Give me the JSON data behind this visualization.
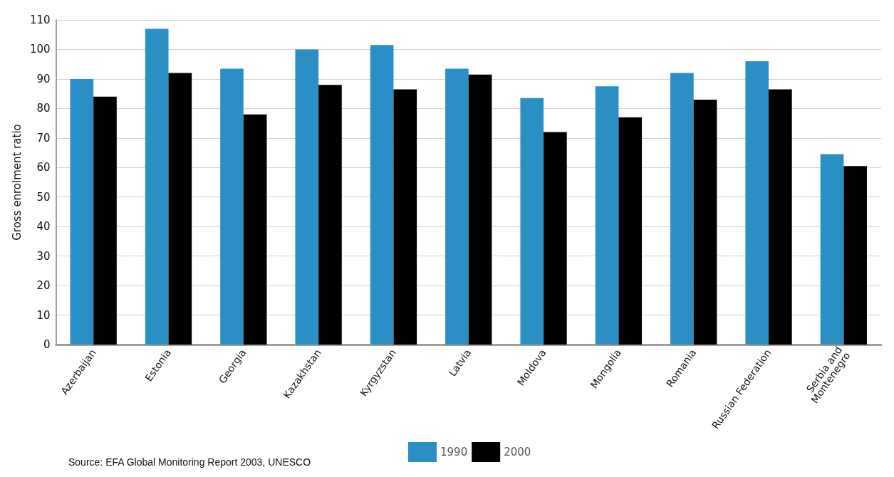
{
  "chart_data": {
    "type": "bar",
    "ylabel": "Gross enrolment ratio",
    "categories": [
      "Azerbaijan",
      "Estonia",
      "Georgia",
      "Kazakhstan",
      "Kyrgyzstan",
      "Latvia",
      "Moldova",
      "Mongolia",
      "Romania",
      "Russian Federation",
      "Serbia and Montenegro"
    ],
    "series": [
      {
        "name": "1990",
        "color": "#2a8fc4",
        "values": [
          90,
          107,
          93.5,
          100,
          101.5,
          93.5,
          83.5,
          87.5,
          92,
          96,
          64.5
        ]
      },
      {
        "name": "2000",
        "color": "#000000",
        "values": [
          84,
          92,
          78,
          88,
          86.5,
          91.5,
          72,
          77,
          83,
          86.5,
          60.5
        ]
      }
    ],
    "ylim": [
      0,
      110
    ],
    "yticks": [
      0,
      10,
      20,
      30,
      40,
      50,
      60,
      70,
      80,
      90,
      100,
      110
    ],
    "grid": "y",
    "legend": "bottom",
    "annotations": [
      "Source: EFA Global Monitoring Report 2003, UNESCO"
    ]
  }
}
